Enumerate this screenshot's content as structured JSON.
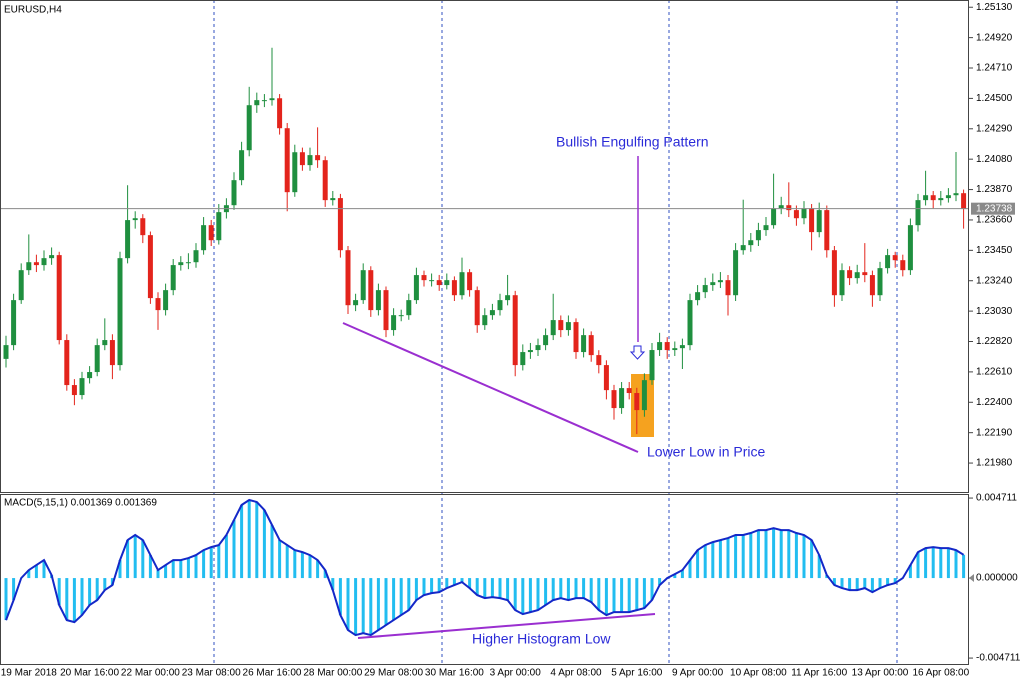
{
  "chart_data": [
    {
      "type": "candlestick",
      "title": "EURUSD,H4",
      "categories": [
        null,
        null,
        null,
        "19 Mar 2018",
        null,
        null,
        null,
        null,
        null,
        null,
        null,
        "20 Mar 16:00",
        null,
        null,
        null,
        null,
        null,
        null,
        null,
        "22 Mar 00:00",
        null,
        null,
        null,
        null,
        null,
        null,
        null,
        "23 Mar 08:00",
        null,
        null,
        null,
        null,
        null,
        null,
        null,
        "26 Mar 16:00",
        null,
        null,
        null,
        null,
        null,
        null,
        null,
        "28 Mar 00:00",
        null,
        null,
        null,
        null,
        null,
        null,
        null,
        "29 Mar 08:00",
        null,
        null,
        null,
        null,
        null,
        null,
        null,
        "30 Mar 16:00",
        null,
        null,
        null,
        null,
        null,
        null,
        null,
        "3 Apr 00:00",
        null,
        null,
        null,
        null,
        null,
        null,
        null,
        "4 Apr 08:00",
        null,
        null,
        null,
        null,
        null,
        null,
        null,
        "5 Apr 16:00",
        null,
        null,
        null,
        null,
        null,
        null,
        null,
        "9 Apr 00:00",
        null,
        null,
        null,
        null,
        null,
        null,
        null,
        "10 Apr 08:00",
        null,
        null,
        null,
        null,
        null,
        null,
        null,
        "11 Apr 16:00",
        null,
        null,
        null,
        null,
        null,
        null,
        null,
        "13 Apr 00:00",
        null,
        null,
        null,
        null,
        null,
        null,
        null,
        "16 Apr 08:00",
        null,
        null,
        null
      ],
      "ohlc": [
        [
          1.227,
          1.2286,
          1.2264,
          1.22795
        ],
        [
          1.22795,
          1.2315,
          1.2276,
          1.23106
        ],
        [
          1.23106,
          1.2336,
          1.2308,
          1.23313
        ],
        [
          1.23313,
          1.2356,
          1.2328,
          1.23368
        ],
        [
          1.23368,
          1.2342,
          1.233,
          1.23348
        ],
        [
          1.23348,
          1.2345,
          1.2331,
          1.23396
        ],
        [
          1.23396,
          1.2347,
          1.2335,
          1.23417
        ],
        [
          1.23417,
          1.2344,
          1.228,
          1.2283
        ],
        [
          1.2283,
          1.2287,
          1.2248,
          1.22519
        ],
        [
          1.22519,
          1.2256,
          1.2238,
          1.2245
        ],
        [
          1.2245,
          1.2261,
          1.2242,
          1.22567
        ],
        [
          1.22567,
          1.2265,
          1.2253,
          1.22609
        ],
        [
          1.22609,
          1.2284,
          1.2258,
          1.22795
        ],
        [
          1.22795,
          1.2298,
          1.2276,
          1.2283
        ],
        [
          1.2283,
          1.2287,
          1.2256,
          1.22657
        ],
        [
          1.22657,
          1.2344,
          1.2262,
          1.23396
        ],
        [
          1.23396,
          1.239,
          1.2336,
          1.23659
        ],
        [
          1.23659,
          1.2372,
          1.236,
          1.23672
        ],
        [
          1.23672,
          1.237,
          1.235,
          1.23555
        ],
        [
          1.23555,
          1.2358,
          1.2308,
          1.2312
        ],
        [
          1.2312,
          1.2316,
          1.229,
          1.23037
        ],
        [
          1.23037,
          1.2322,
          1.23,
          1.23175
        ],
        [
          1.23175,
          1.2339,
          1.2314,
          1.23348
        ],
        [
          1.23348,
          1.2341,
          1.2331,
          1.23368
        ],
        [
          1.23368,
          1.2343,
          1.2332,
          1.23368
        ],
        [
          1.23368,
          1.235,
          1.2333,
          1.23451
        ],
        [
          1.23451,
          1.2368,
          1.2342,
          1.23624
        ],
        [
          1.23624,
          1.2366,
          1.2348,
          1.2352
        ],
        [
          1.2352,
          1.2377,
          1.2349,
          1.23714
        ],
        [
          1.23714,
          1.2381,
          1.2367,
          1.23762
        ],
        [
          1.23762,
          1.2399,
          1.2373,
          1.23935
        ],
        [
          1.23935,
          1.242,
          1.239,
          1.24142
        ],
        [
          1.24142,
          1.2458,
          1.241,
          1.24453
        ],
        [
          1.24453,
          1.2454,
          1.244,
          1.24488
        ],
        [
          1.24488,
          1.2453,
          1.2444,
          1.24488
        ],
        [
          1.24488,
          1.2485,
          1.2445,
          1.24501
        ],
        [
          1.24501,
          1.2453,
          1.2425,
          1.24294
        ],
        [
          1.24294,
          1.2433,
          1.2372,
          1.23852
        ],
        [
          1.23852,
          1.2418,
          1.2382,
          1.24128
        ],
        [
          1.24128,
          1.2416,
          1.24,
          1.24039
        ],
        [
          1.24039,
          1.2416,
          1.24,
          1.24108
        ],
        [
          1.24108,
          1.243,
          1.2402,
          1.24073
        ],
        [
          1.24073,
          1.241,
          1.2375,
          1.23797
        ],
        [
          1.23797,
          1.2386,
          1.2376,
          1.23811
        ],
        [
          1.23811,
          1.2384,
          1.234,
          1.23451
        ],
        [
          1.23451,
          1.2348,
          1.2301,
          1.23071
        ],
        [
          1.23071,
          1.2315,
          1.2303,
          1.23106
        ],
        [
          1.23106,
          1.2336,
          1.2308,
          1.23313
        ],
        [
          1.23313,
          1.2334,
          1.2299,
          1.23037
        ],
        [
          1.23037,
          1.2322,
          1.23,
          1.23175
        ],
        [
          1.23175,
          1.232,
          1.2285,
          1.22899
        ],
        [
          1.22899,
          1.2305,
          1.2286,
          1.23002
        ],
        [
          1.23002,
          1.2304,
          1.2296,
          1.23002
        ],
        [
          1.23002,
          1.2315,
          1.2297,
          1.23106
        ],
        [
          1.23106,
          1.2333,
          1.2308,
          1.23279
        ],
        [
          1.23279,
          1.2331,
          1.232,
          1.23244
        ],
        [
          1.23244,
          1.2329,
          1.232,
          1.23244
        ],
        [
          1.23244,
          1.2328,
          1.2317,
          1.2321
        ],
        [
          1.2321,
          1.2329,
          1.2318,
          1.23244
        ],
        [
          1.23244,
          1.2327,
          1.231,
          1.2314
        ],
        [
          1.2314,
          1.234,
          1.2311,
          1.23299
        ],
        [
          1.23299,
          1.2332,
          1.2313,
          1.23175
        ],
        [
          1.23175,
          1.232,
          1.2288,
          1.22933
        ],
        [
          1.22933,
          1.2305,
          1.229,
          1.23002
        ],
        [
          1.23002,
          1.2308,
          1.2297,
          1.23037
        ],
        [
          1.23037,
          1.2315,
          1.23,
          1.23106
        ],
        [
          1.23106,
          1.2328,
          1.2307,
          1.2314
        ],
        [
          1.2314,
          1.2317,
          1.2258,
          1.22657
        ],
        [
          1.22657,
          1.228,
          1.2262,
          1.22747
        ],
        [
          1.22747,
          1.2281,
          1.227,
          1.22761
        ],
        [
          1.22761,
          1.2284,
          1.2272,
          1.22795
        ],
        [
          1.22795,
          1.2291,
          1.2276,
          1.22864
        ],
        [
          1.22864,
          1.2315,
          1.2283,
          1.22968
        ],
        [
          1.22968,
          1.23,
          1.2285,
          1.22899
        ],
        [
          1.22899,
          1.23,
          1.2286,
          1.22954
        ],
        [
          1.22954,
          1.2298,
          1.227,
          1.22747
        ],
        [
          1.22747,
          1.2291,
          1.2271,
          1.22864
        ],
        [
          1.22864,
          1.2289,
          1.2268,
          1.22726
        ],
        [
          1.22726,
          1.2276,
          1.226,
          1.22657
        ],
        [
          1.22657,
          1.2269,
          1.2242,
          1.22484
        ],
        [
          1.22484,
          1.2252,
          1.2228,
          1.2236
        ],
        [
          1.2236,
          1.2254,
          1.2232,
          1.22498
        ],
        [
          1.22498,
          1.2254,
          1.2242,
          1.22464
        ],
        [
          1.22464,
          1.225,
          1.2218,
          1.22346
        ],
        [
          1.22346,
          1.226,
          1.223,
          1.22553
        ],
        [
          1.22553,
          1.2281,
          1.2252,
          1.22761
        ],
        [
          1.22761,
          1.2288,
          1.2272,
          1.22816
        ],
        [
          1.22816,
          1.2285,
          1.227,
          1.22761
        ],
        [
          1.22761,
          1.2282,
          1.2272,
          1.22774
        ],
        [
          1.22774,
          1.2284,
          1.2263,
          1.22795
        ],
        [
          1.22795,
          1.2315,
          1.2276,
          1.23106
        ],
        [
          1.23106,
          1.2321,
          1.2307,
          1.23161
        ],
        [
          1.23161,
          1.2326,
          1.2312,
          1.2321
        ],
        [
          1.2321,
          1.2329,
          1.2317,
          1.2323
        ],
        [
          1.2323,
          1.233,
          1.2319,
          1.23244
        ],
        [
          1.23244,
          1.2328,
          1.23,
          1.2314
        ],
        [
          1.2314,
          1.235,
          1.231,
          1.23451
        ],
        [
          1.23451,
          1.238,
          1.2342,
          1.23486
        ],
        [
          1.23486,
          1.2357,
          1.2344,
          1.2352
        ],
        [
          1.2352,
          1.2364,
          1.2348,
          1.2359
        ],
        [
          1.2359,
          1.2368,
          1.2355,
          1.23624
        ],
        [
          1.23624,
          1.2398,
          1.236,
          1.23741
        ],
        [
          1.23741,
          1.2382,
          1.237,
          1.23762
        ],
        [
          1.23762,
          1.2392,
          1.2368,
          1.23728
        ],
        [
          1.23728,
          1.2376,
          1.2362,
          1.23672
        ],
        [
          1.23672,
          1.2379,
          1.2363,
          1.23741
        ],
        [
          1.23741,
          1.2377,
          1.2345,
          1.23576
        ],
        [
          1.23576,
          1.2378,
          1.2354,
          1.23728
        ],
        [
          1.23728,
          1.2376,
          1.234,
          1.23451
        ],
        [
          1.23451,
          1.2348,
          1.2306,
          1.2314
        ],
        [
          1.2314,
          1.2336,
          1.231,
          1.23313
        ],
        [
          1.23313,
          1.2334,
          1.2321,
          1.23258
        ],
        [
          1.23258,
          1.2335,
          1.2322,
          1.23299
        ],
        [
          1.23299,
          1.235,
          1.2323,
          1.23279
        ],
        [
          1.23279,
          1.2331,
          1.2306,
          1.2314
        ],
        [
          1.2314,
          1.2337,
          1.231,
          1.23327
        ],
        [
          1.23327,
          1.2346,
          1.2329,
          1.23417
        ],
        [
          1.23417,
          1.2344,
          1.2333,
          1.23382
        ],
        [
          1.23382,
          1.2342,
          1.2327,
          1.23313
        ],
        [
          1.23313,
          1.2367,
          1.2328,
          1.23624
        ],
        [
          1.23624,
          1.2384,
          1.2358,
          1.23797
        ],
        [
          1.23797,
          1.24,
          1.2376,
          1.23831
        ],
        [
          1.23831,
          1.2386,
          1.2374,
          1.23797
        ],
        [
          1.23797,
          1.2386,
          1.2376,
          1.23811
        ],
        [
          1.23811,
          1.2388,
          1.2378,
          1.23831
        ],
        [
          1.23831,
          1.2413,
          1.2379,
          1.23845
        ],
        [
          1.23845,
          1.2387,
          1.236,
          1.23738
        ]
      ],
      "up_color": "#1f8f3f",
      "down_color": "#e3241c",
      "ylim": [
        1.2178,
        1.2518
      ],
      "yticks": [
        {
          "value": 1.2513,
          "label": "1.25130"
        },
        {
          "value": 1.2492,
          "label": "1.24920"
        },
        {
          "value": 1.2471,
          "label": "1.24710"
        },
        {
          "value": 1.245,
          "label": "1.24500"
        },
        {
          "value": 1.2429,
          "label": "1.24290"
        },
        {
          "value": 1.2408,
          "label": "1.24080"
        },
        {
          "value": 1.2387,
          "label": "1.23870"
        },
        {
          "value": 1.2366,
          "label": "1.23660"
        },
        {
          "value": 1.2345,
          "label": "1.23450"
        },
        {
          "value": 1.2324,
          "label": "1.23240"
        },
        {
          "value": 1.2303,
          "label": "1.23030"
        },
        {
          "value": 1.2282,
          "label": "1.22820"
        },
        {
          "value": 1.2261,
          "label": "1.22610"
        },
        {
          "value": 1.224,
          "label": "1.22400"
        },
        {
          "value": 1.2219,
          "label": "1.22190"
        },
        {
          "value": 1.2198,
          "label": "1.21980"
        }
      ],
      "last_price": 1.23738,
      "annotations": [
        "Bullish Engulfing Pattern",
        "Lower Low in Price"
      ]
    },
    {
      "type": "bar",
      "title": "MACD(5,15,1) 0.001369 0.001369",
      "values": [
        -0.002474,
        -0.001296,
        0,
        0.000471,
        0.000766,
        0.00106,
        0.000177,
        -0.00159,
        -0.002474,
        -0.002592,
        -0.002179,
        -0.00159,
        -0.001296,
        -0.000707,
        -0.000412,
        0.00106,
        0.002238,
        0.002533,
        0.002238,
        0.001355,
        0.000471,
        0.000766,
        0.00106,
        0.00106,
        0.001178,
        0.001355,
        0.001649,
        0.001826,
        0.001944,
        0.002533,
        0.003416,
        0.0043,
        0.004594,
        0.004476,
        0.004005,
        0.003122,
        0.002238,
        0.001944,
        0.001649,
        0.001531,
        0.001355,
        0.00106,
        0.000471,
        -0.000707,
        -0.002179,
        -0.003063,
        -0.003357,
        -0.00324,
        -0.003357,
        -0.003063,
        -0.002768,
        -0.002474,
        -0.002179,
        -0.001885,
        -0.001296,
        -0.001001,
        -0.000884,
        -0.000825,
        -0.000589,
        -0.000412,
        -0.000236,
        -0.000589,
        -0.001001,
        -0.001178,
        -0.001119,
        -0.001178,
        -0.001296,
        -0.001885,
        -0.00212,
        -0.002003,
        -0.001885,
        -0.00159,
        -0.001296,
        -0.001178,
        -0.001296,
        -0.001178,
        -0.001178,
        -0.001414,
        -0.001885,
        -0.002179,
        -0.002003,
        -0.002003,
        -0.002003,
        -0.001885,
        -0.001767,
        -0.001296,
        -0.000412,
        0,
        0.000236,
        0.000471,
        0.00106,
        0.001649,
        0.001944,
        0.00212,
        0.002238,
        0.002356,
        0.002533,
        0.002533,
        0.002651,
        0.002827,
        0.002827,
        0.002945,
        0.002827,
        0.002827,
        0.002651,
        0.002533,
        0.002238,
        0.001355,
        0.000177,
        -0.000412,
        -0.000589,
        -0.000707,
        -0.000707,
        -0.000589,
        -0.000825,
        -0.000589,
        -0.000412,
        -0.000295,
        0,
        0.000766,
        0.001531,
        0.001767,
        0.001826,
        0.001767,
        0.001767,
        0.001649,
        0.001369
      ],
      "color": "#22bdf0",
      "line_color": "#1428c8",
      "ylim": [
        -0.00506,
        0.00495
      ],
      "yticks": [
        0.004711,
        {
          "value": 0,
          "label": "0.000000"
        },
        -0.004711
      ],
      "annotations": [
        "Higher Histogram Low"
      ]
    }
  ]
}
